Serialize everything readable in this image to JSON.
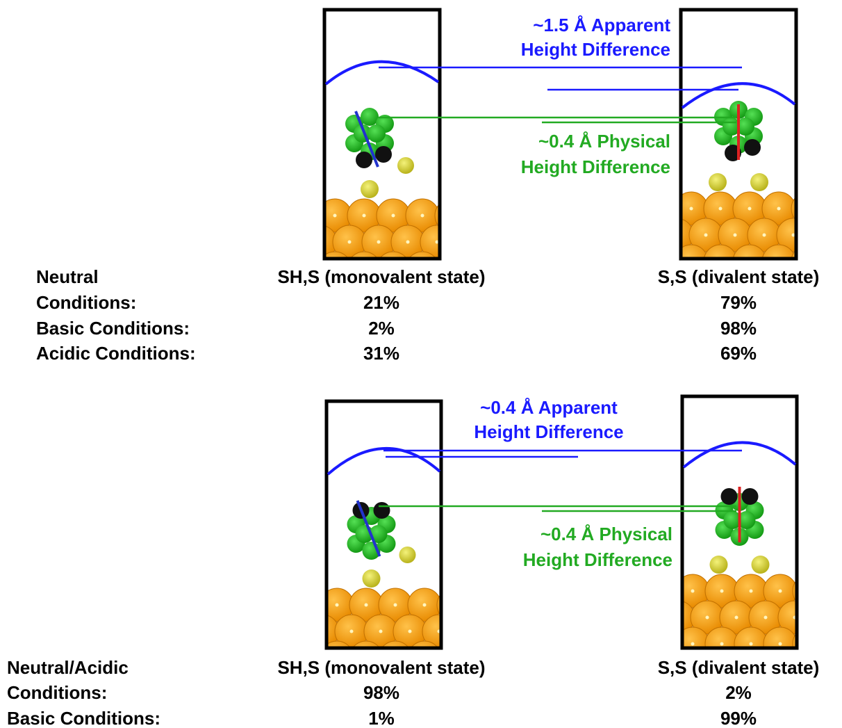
{
  "panels": [
    {
      "apparent_label": [
        "~1.5 Å Apparent",
        "Height Difference"
      ],
      "physical_label": [
        "~0.4 Å Physical",
        "Height Difference"
      ],
      "columns": [
        "SH,S (monovalent state)",
        "S,S (divalent state)"
      ],
      "rows": [
        {
          "label": [
            "Neutral",
            "Conditions:"
          ],
          "values": [
            "21%",
            "79%"
          ]
        },
        {
          "label": [
            "Basic Conditions:"
          ],
          "values": [
            "2%",
            "98%"
          ]
        },
        {
          "label": [
            "Acidic Conditions:"
          ],
          "values": [
            "31%",
            "69%"
          ]
        }
      ]
    },
    {
      "apparent_label": [
        "~0.4 Å Apparent",
        "Height Difference"
      ],
      "physical_label": [
        "~0.4 Å Physical",
        "Height Difference"
      ],
      "columns": [
        "SH,S (monovalent state)",
        "S,S (divalent state)"
      ],
      "rows": [
        {
          "label": [
            "Neutral/Acidic",
            "Conditions:"
          ],
          "values": [
            "98%",
            "2%"
          ]
        },
        {
          "label": [
            "Basic Conditions:"
          ],
          "values": [
            "1%",
            "99%"
          ]
        }
      ]
    }
  ]
}
